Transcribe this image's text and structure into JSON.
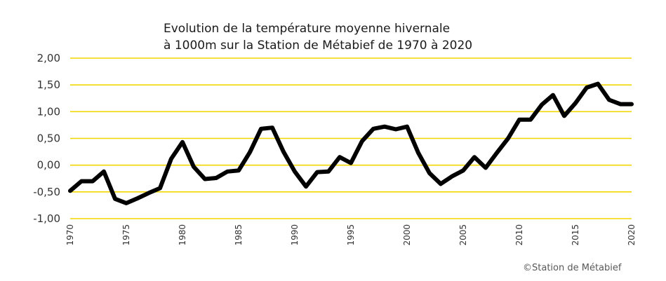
{
  "chart_data": {
    "type": "line",
    "title_lines": [
      "Evolution de la température moyenne hivernale",
      "à 1000m sur la Station de Métabief de 1970 à 2020"
    ],
    "xlabel": "",
    "ylabel": "",
    "ylim": [
      -1.0,
      2.0
    ],
    "xlim": [
      1970,
      2020
    ],
    "y_tick_labels": [
      "2,00",
      "1,50",
      "1,00",
      "0,50",
      "0,00",
      "-0,50",
      "-1,00"
    ],
    "y_tick_values": [
      2.0,
      1.5,
      1.0,
      0.5,
      0.0,
      -0.5,
      -1.0
    ],
    "x_tick_labels": [
      "1970",
      "1975",
      "1980",
      "1985",
      "1990",
      "1995",
      "2000",
      "2005",
      "2010",
      "2015",
      "2020"
    ],
    "x_tick_values": [
      1970,
      1975,
      1980,
      1985,
      1990,
      1995,
      2000,
      2005,
      2010,
      2015,
      2020
    ],
    "grid": "horizontal",
    "colors": {
      "line": "#000000",
      "grid": "#f2d600",
      "text": "#333333"
    },
    "x": [
      1970,
      1971,
      1972,
      1973,
      1974,
      1975,
      1976,
      1977,
      1978,
      1979,
      1980,
      1981,
      1982,
      1983,
      1984,
      1985,
      1986,
      1987,
      1988,
      1989,
      1990,
      1991,
      1992,
      1993,
      1994,
      1995,
      1996,
      1997,
      1998,
      1999,
      2000,
      2001,
      2002,
      2003,
      2004,
      2005,
      2006,
      2007,
      2008,
      2009,
      2010,
      2011,
      2012,
      2013,
      2014,
      2015,
      2016,
      2017,
      2018,
      2019,
      2020
    ],
    "series": [
      {
        "values": [
          -0.48,
          -0.3,
          -0.3,
          -0.12,
          -0.63,
          -0.71,
          -0.62,
          -0.52,
          -0.43,
          0.12,
          0.43,
          -0.03,
          -0.26,
          -0.24,
          -0.12,
          -0.1,
          0.24,
          0.68,
          0.7,
          0.25,
          -0.12,
          -0.4,
          -0.13,
          -0.12,
          0.15,
          0.04,
          0.45,
          0.68,
          0.72,
          0.67,
          0.72,
          0.23,
          -0.15,
          -0.35,
          -0.21,
          -0.1,
          0.15,
          -0.05,
          0.23,
          0.5,
          0.85,
          0.85,
          1.13,
          1.31,
          0.92,
          1.16,
          1.45,
          1.52,
          1.22,
          1.14,
          1.14
        ]
      }
    ]
  },
  "credit": "©Station de Métabief"
}
